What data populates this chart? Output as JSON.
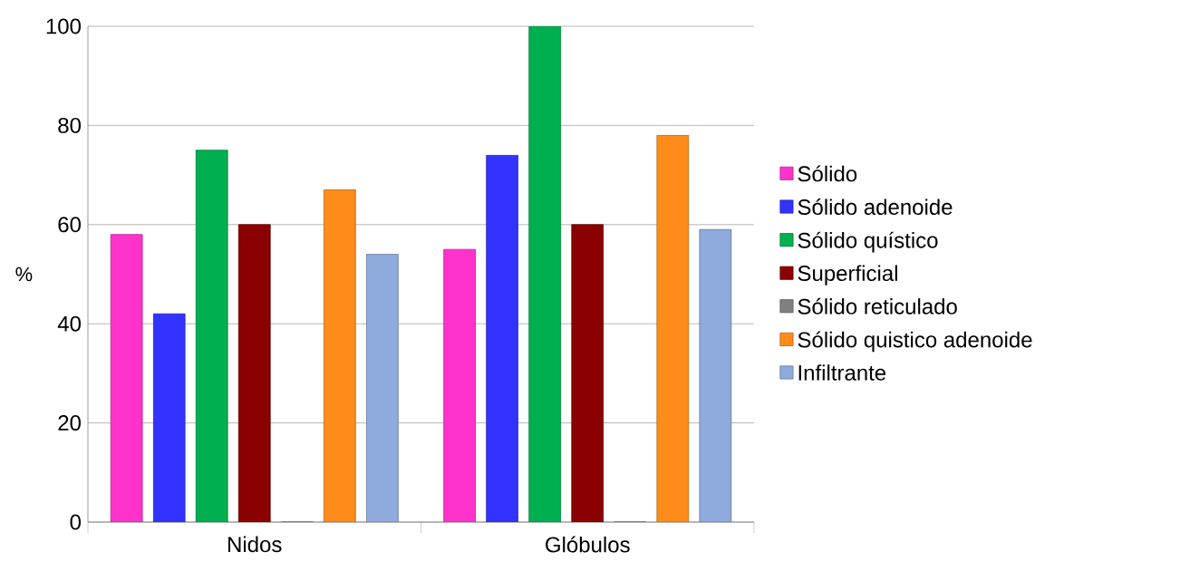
{
  "chart_data": {
    "type": "bar",
    "ylabel": "%",
    "categories": [
      "Nidos",
      "Glóbulos"
    ],
    "series": [
      {
        "name": "Sólido",
        "color": "#ff33cc",
        "values": [
          58,
          55
        ]
      },
      {
        "name": "Sólido adenoide",
        "color": "#3333ff",
        "values": [
          42,
          74
        ]
      },
      {
        "name": "Sólido quístico",
        "color": "#00b050",
        "values": [
          75,
          100
        ]
      },
      {
        "name": "Superficial",
        "color": "#8b0000",
        "values": [
          60,
          60
        ]
      },
      {
        "name": "Sólido reticulado",
        "color": "#808080",
        "values": [
          0,
          0
        ]
      },
      {
        "name": "Sólido quistico adenoide",
        "color": "#ff8c1a",
        "values": [
          67,
          78
        ]
      },
      {
        "name": "Infiltrante",
        "color": "#8faadc",
        "values": [
          54,
          59
        ]
      }
    ],
    "ylim": [
      0,
      100
    ],
    "yticks": [
      0,
      20,
      40,
      60,
      80,
      100
    ],
    "grid": "y",
    "legend": "right"
  }
}
